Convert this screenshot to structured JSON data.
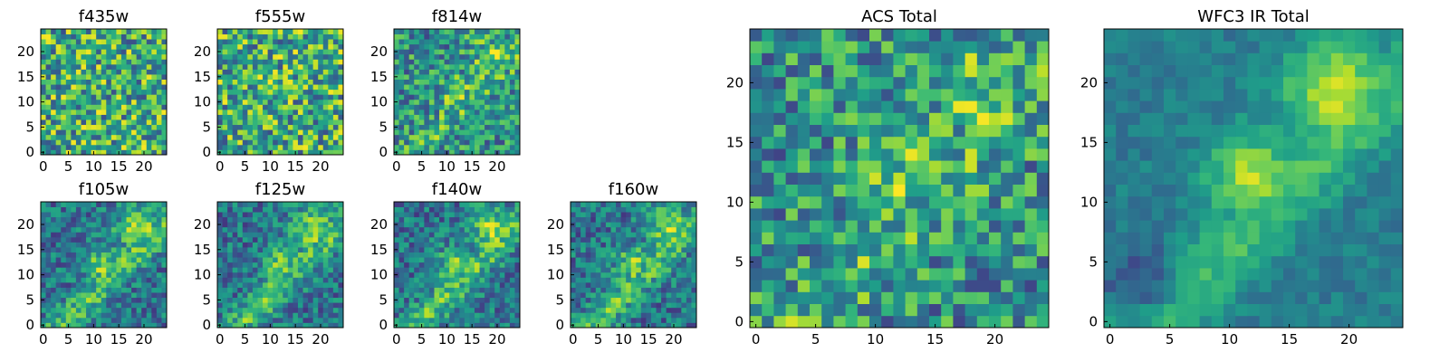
{
  "chart_data": [
    {
      "type": "heatmap",
      "title": "f435w",
      "xticks": [
        "0",
        "5",
        "10",
        "15",
        "20"
      ],
      "yticks": [
        "0",
        "5",
        "10",
        "15",
        "20"
      ],
      "grid_size": 25,
      "colormap": "viridis",
      "pattern": "noise"
    },
    {
      "type": "heatmap",
      "title": "f555w",
      "xticks": [
        "0",
        "5",
        "10",
        "15",
        "20"
      ],
      "yticks": [
        "0",
        "5",
        "10",
        "15",
        "20"
      ],
      "grid_size": 25,
      "colormap": "viridis",
      "pattern": "noise"
    },
    {
      "type": "heatmap",
      "title": "f814w",
      "xticks": [
        "0",
        "5",
        "10",
        "15",
        "20"
      ],
      "yticks": [
        "0",
        "5",
        "10",
        "15",
        "20"
      ],
      "grid_size": 25,
      "colormap": "viridis",
      "pattern": "noise-with-diagonal"
    },
    {
      "type": "heatmap",
      "title": "f105w",
      "xticks": [
        "0",
        "5",
        "10",
        "15",
        "20"
      ],
      "yticks": [
        "0",
        "5",
        "10",
        "15",
        "20"
      ],
      "grid_size": 25,
      "colormap": "viridis",
      "pattern": "diagonal-structure"
    },
    {
      "type": "heatmap",
      "title": "f125w",
      "xticks": [
        "0",
        "5",
        "10",
        "15",
        "20"
      ],
      "yticks": [
        "0",
        "5",
        "10",
        "15",
        "20"
      ],
      "grid_size": 25,
      "colormap": "viridis",
      "pattern": "diagonal-structure"
    },
    {
      "type": "heatmap",
      "title": "f140w",
      "xticks": [
        "0",
        "5",
        "10",
        "15",
        "20"
      ],
      "yticks": [
        "0",
        "5",
        "10",
        "15",
        "20"
      ],
      "grid_size": 25,
      "colormap": "viridis",
      "pattern": "diagonal-structure"
    },
    {
      "type": "heatmap",
      "title": "f160w",
      "xticks": [
        "0",
        "5",
        "10",
        "15",
        "20"
      ],
      "yticks": [
        "0",
        "5",
        "10",
        "15",
        "20"
      ],
      "grid_size": 25,
      "colormap": "viridis",
      "pattern": "diagonal-structure"
    },
    {
      "type": "heatmap",
      "title": "ACS Total",
      "xticks": [
        "0",
        "5",
        "10",
        "15",
        "20"
      ],
      "yticks": [
        "0",
        "5",
        "10",
        "15",
        "20"
      ],
      "grid_size": 25,
      "colormap": "viridis",
      "pattern": "noise-with-diagonal"
    },
    {
      "type": "heatmap",
      "title": "WFC3 IR Total",
      "xticks": [
        "0",
        "5",
        "10",
        "15",
        "20"
      ],
      "yticks": [
        "0",
        "5",
        "10",
        "15",
        "20"
      ],
      "grid_size": 25,
      "colormap": "viridis",
      "pattern": "smooth-diagonal"
    }
  ]
}
